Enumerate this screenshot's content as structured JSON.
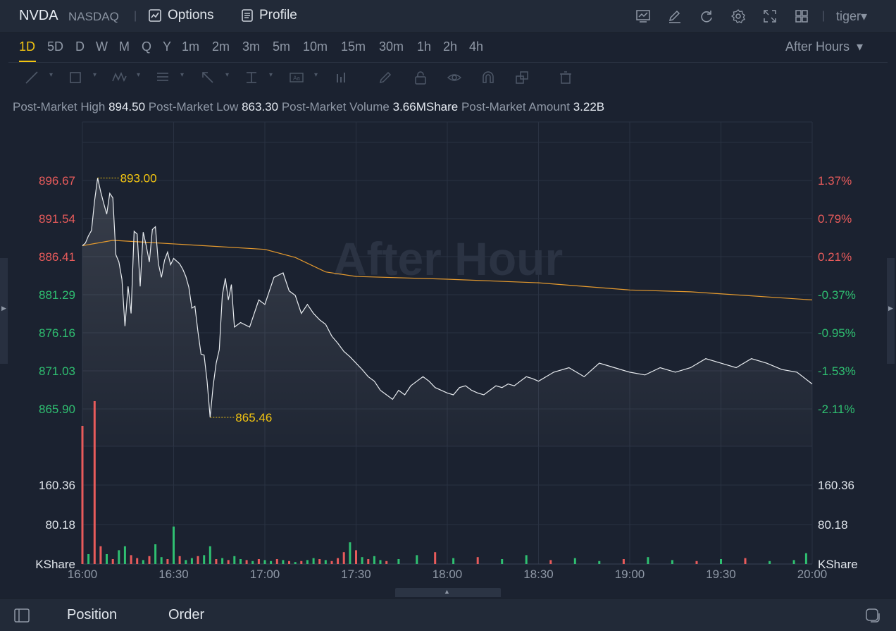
{
  "header": {
    "symbol": "NVDA",
    "exchange": "NASDAQ",
    "tabs": [
      {
        "label": "Options",
        "icon": "options-chart-icon"
      },
      {
        "label": "Profile",
        "icon": "document-icon"
      }
    ],
    "tools": [
      "indicator-icon",
      "draw-pen-icon",
      "refresh-icon",
      "gear-icon",
      "fullscreen-icon",
      "grid-layout-icon"
    ],
    "user": "tiger"
  },
  "periods": {
    "items": [
      "1D",
      "5D",
      "D",
      "W",
      "M",
      "Q",
      "Y",
      "1m",
      "2m",
      "3m",
      "5m",
      "10m",
      "15m",
      "30m",
      "1h",
      "2h",
      "4h"
    ],
    "active": "1D",
    "session": "After Hours"
  },
  "drawing_tools": [
    "line-tool-icon",
    "rectangle-tool-icon",
    "wave-tool-icon",
    "fibonacci-tool-icon",
    "arrow-tool-icon",
    "measure-tool-icon",
    "text-tool-icon",
    "chart-type-icon",
    "pencil-icon",
    "lock-icon",
    "eye-icon",
    "magnet-icon",
    "copy-icon",
    "trash-icon"
  ],
  "stats": {
    "high_label": "Post-Market High",
    "high_value": "894.50",
    "low_label": "Post-Market Low",
    "low_value": "863.30",
    "volume_label": "Post-Market Volume",
    "volume_value": "3.66MShare",
    "amount_label": "Post-Market Amount",
    "amount_value": "3.22B"
  },
  "watermark": "After Hour",
  "bottom": {
    "tabs": [
      "Position",
      "Order"
    ]
  },
  "colors": {
    "background": "#1b2230",
    "price_line": "#e8ecf0",
    "avg_line": "#e59a2e",
    "up": "#e85b5b",
    "down": "#2fbf71",
    "highlight": "#f2c411"
  },
  "chart_data": {
    "type": "line",
    "x_ticks": [
      "16:00",
      "16:30",
      "17:00",
      "17:30",
      "18:00",
      "18:30",
      "19:00",
      "19:30",
      "20:00"
    ],
    "y_left_ticks": [
      "896.67",
      "891.54",
      "886.41",
      "881.29",
      "876.16",
      "871.03",
      "865.90"
    ],
    "y_right_ticks": [
      "1.37%",
      "0.79%",
      "0.21%",
      "-0.37%",
      "-0.95%",
      "-1.53%",
      "-2.11%"
    ],
    "ylim": [
      863.3,
      899.2
    ],
    "volume_ticks": [
      "160.36",
      "80.18",
      "KShare"
    ],
    "volume_right_ticks": [
      "160.36",
      "80.18",
      "KShare"
    ],
    "max_marker": "893.00",
    "min_marker": "865.46",
    "series": [
      {
        "name": "price",
        "x": [
          0,
          1,
          2,
          3,
          4,
          5,
          6,
          7,
          8,
          9,
          10,
          11,
          12,
          13,
          14,
          15,
          16,
          17,
          18,
          19,
          20,
          21,
          22,
          23,
          24,
          25,
          26,
          27,
          28,
          29,
          30,
          31,
          32,
          33,
          34,
          35,
          36,
          37,
          38,
          39,
          40,
          41,
          42,
          43,
          44,
          45,
          46,
          47,
          48,
          49,
          50,
          52,
          55,
          58,
          60,
          63,
          66,
          68,
          70,
          72,
          74,
          76,
          78,
          80,
          82,
          84,
          86,
          88,
          90,
          92,
          94,
          96,
          98,
          100,
          102,
          104,
          106,
          108,
          110,
          112,
          114,
          116,
          118,
          120,
          122,
          124,
          126,
          128,
          130,
          132,
          134,
          136,
          138,
          140,
          142,
          144,
          146,
          148,
          150,
          155,
          160,
          165,
          170,
          175,
          180,
          185,
          190,
          195,
          200,
          205,
          210,
          215,
          220,
          225,
          230,
          235,
          240
        ],
        "values": [
          885.5,
          885.8,
          886.6,
          887.2,
          890.5,
          893.0,
          891.5,
          890.2,
          889.0,
          891.3,
          890.8,
          884.5,
          883.7,
          881.8,
          876.6,
          881.0,
          878.0,
          887.1,
          886.8,
          881.0,
          887.0,
          885.5,
          883.7,
          887.3,
          887.6,
          883.5,
          882.0,
          883.9,
          884.8,
          883.4,
          884.1,
          883.8,
          883.5,
          882.9,
          882.1,
          880.9,
          878.6,
          878.8,
          876.0,
          873.5,
          873.4,
          870.5,
          866.5,
          870.0,
          872.5,
          874.0,
          880.0,
          881.9,
          879.5,
          881.2,
          876.5,
          877.0,
          876.5,
          879.5,
          879.0,
          882.0,
          882.5,
          880.5,
          880.0,
          878.0,
          879.0,
          878.0,
          877.3,
          876.8,
          875.5,
          874.7,
          873.8,
          873.2,
          872.5,
          871.8,
          871.0,
          870.5,
          869.5,
          869.0,
          868.5,
          869.5,
          869.0,
          870.0,
          870.5,
          871.0,
          870.5,
          869.8,
          869.5,
          869.2,
          869.0,
          869.8,
          870.0,
          869.5,
          869.2,
          869.0,
          869.5,
          870.0,
          869.8,
          870.2,
          870.0,
          870.5,
          871.0,
          870.8,
          870.5,
          871.5,
          872.0,
          871.0,
          872.5,
          872.0,
          871.5,
          871.2,
          872.0,
          871.5,
          872.0,
          873.0,
          872.5,
          872.0,
          873.0,
          872.5,
          871.8,
          871.5,
          870.2
        ]
      },
      {
        "name": "average",
        "x": [
          0,
          10,
          20,
          40,
          60,
          70,
          80,
          90,
          120,
          150,
          180,
          200,
          240
        ],
        "values": [
          885.5,
          886.1,
          885.9,
          885.5,
          885.1,
          884.2,
          882.6,
          882.1,
          881.8,
          881.4,
          880.6,
          880.4,
          879.5
        ]
      }
    ],
    "volume_series": {
      "x": [
        0,
        2,
        4,
        6,
        8,
        10,
        12,
        14,
        16,
        18,
        20,
        22,
        24,
        26,
        28,
        30,
        32,
        34,
        36,
        38,
        40,
        42,
        44,
        46,
        48,
        50,
        52,
        54,
        56,
        58,
        60,
        62,
        64,
        66,
        68,
        70,
        72,
        74,
        76,
        78,
        80,
        82,
        84,
        86,
        88,
        90,
        92,
        94,
        96,
        98,
        100,
        104,
        110,
        116,
        122,
        130,
        138,
        146,
        154,
        162,
        170,
        178,
        186,
        194,
        202,
        210,
        218,
        226,
        234,
        238
      ],
      "values": [
        140,
        10,
        165,
        18,
        10,
        5,
        14,
        18,
        9,
        6,
        4,
        8,
        20,
        7,
        5,
        38,
        8,
        4,
        6,
        8,
        9,
        18,
        5,
        6,
        4,
        8,
        5,
        4,
        3,
        5,
        4,
        3,
        5,
        4,
        3,
        2,
        3,
        4,
        6,
        5,
        4,
        3,
        6,
        12,
        22,
        14,
        7,
        5,
        8,
        4,
        3,
        5,
        9,
        12,
        6,
        7,
        5,
        9,
        4,
        6,
        3,
        5,
        7,
        4,
        3,
        5,
        6,
        3,
        4,
        11
      ],
      "up": [
        1,
        0,
        1,
        1,
        0,
        1,
        0,
        0,
        1,
        1,
        0,
        1,
        0,
        0,
        1,
        0,
        1,
        0,
        0,
        1,
        0,
        0,
        1,
        0,
        1,
        0,
        0,
        1,
        0,
        1,
        0,
        0,
        1,
        0,
        1,
        0,
        1,
        0,
        0,
        1,
        0,
        1,
        1,
        1,
        0,
        1,
        0,
        1,
        0,
        0,
        1,
        0,
        0,
        1,
        0,
        1,
        0,
        0,
        1,
        0,
        0,
        1,
        0,
        0,
        1,
        0,
        1,
        0,
        0,
        0
      ]
    }
  }
}
